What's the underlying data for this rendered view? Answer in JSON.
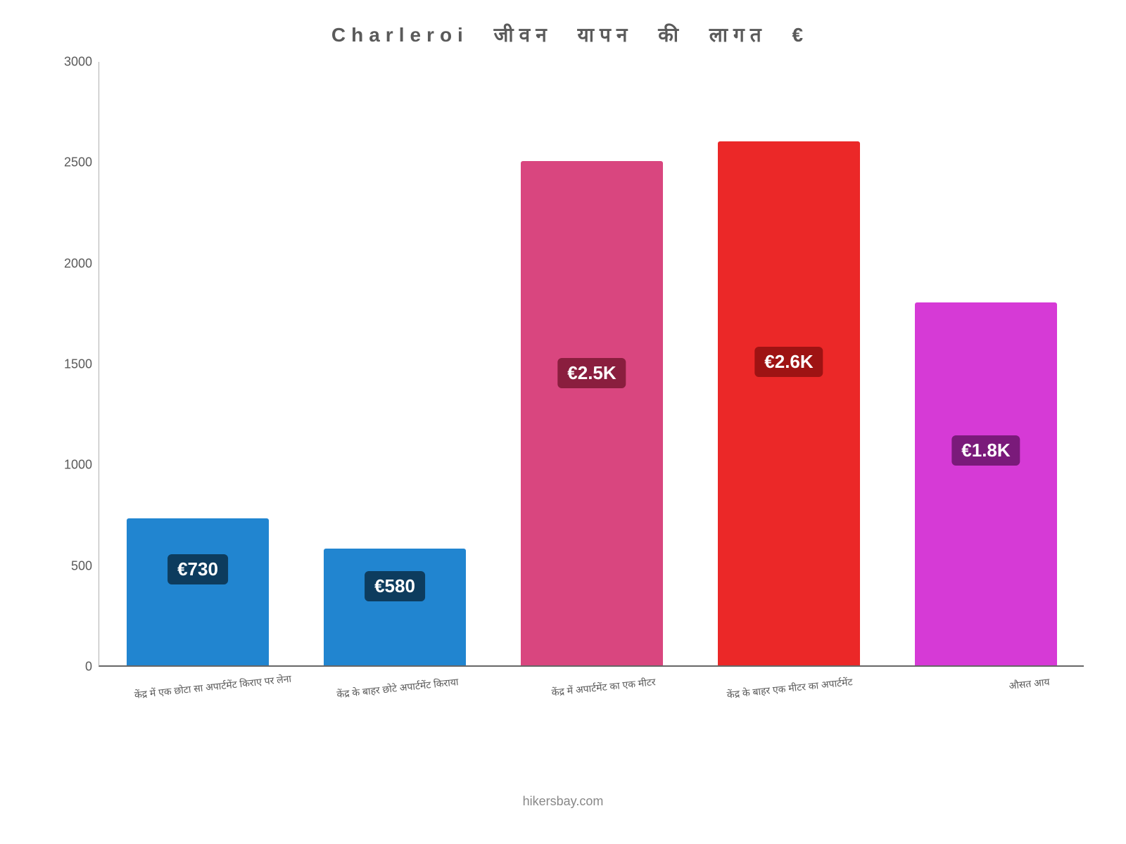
{
  "chart": {
    "type": "bar",
    "title": "Charleroi जीवन यापन की लागत €",
    "title_fontsize": 28,
    "title_color": "#5a5a5a",
    "background_color": "#ffffff",
    "ylim": [
      0,
      3000
    ],
    "ytick_step": 500,
    "yticks": [
      "0",
      "500",
      "1000",
      "1500",
      "2000",
      "2500",
      "3000"
    ],
    "axis_color": "#666666",
    "label_fontsize": 14,
    "label_color": "#5a5a5a",
    "bar_width_ratio": 0.72,
    "bars": [
      {
        "category": "केंद्र में एक छोटा सा अपार्टमेंट किराए पर लेना",
        "value": 730,
        "label": "€730",
        "color": "#2185d0",
        "label_bg": "#0d3c5e"
      },
      {
        "category": "केंद्र के बाहर छोटे अपार्टमेंट किराया",
        "value": 580,
        "label": "€580",
        "color": "#2185d0",
        "label_bg": "#0d3c5e"
      },
      {
        "category": "केंद्र में अपार्टमेंट का एक मीटर",
        "value": 2500,
        "label": "€2.5K",
        "color": "#d9467f",
        "label_bg": "#8a1e3e"
      },
      {
        "category": "केंद्र के बाहर एक मीटर का अपार्टमेंट",
        "value": 2600,
        "label": "€2.6K",
        "color": "#eb2828",
        "label_bg": "#9e1313"
      },
      {
        "category": "औसत आय",
        "value": 1800,
        "label": "€1.8K",
        "color": "#d63ad6",
        "label_bg": "#7a1a7a"
      }
    ],
    "footer": "hikersbay.com",
    "footer_color": "#888888",
    "footer_fontsize": 18
  }
}
